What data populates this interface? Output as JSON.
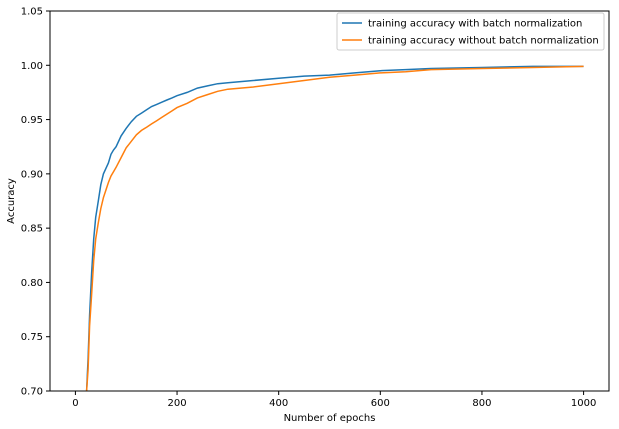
{
  "chart_data": {
    "type": "line",
    "title": "",
    "xlabel": "Number of epochs",
    "ylabel": "Accuracy",
    "xlim": [
      -50,
      1050
    ],
    "ylim": [
      0.7,
      1.05
    ],
    "xticks": [
      0,
      200,
      400,
      600,
      800,
      1000
    ],
    "yticks": [
      0.7,
      0.75,
      0.8,
      0.85,
      0.9,
      0.95,
      1.0,
      1.05
    ],
    "xtick_labels": [
      "0",
      "200",
      "400",
      "600",
      "800",
      "1000"
    ],
    "ytick_labels": [
      "0.70",
      "0.75",
      "0.80",
      "0.85",
      "0.90",
      "0.95",
      "1.00",
      "1.05"
    ],
    "grid": false,
    "legend_position": "top-right",
    "series": [
      {
        "name": "training accuracy with batch normalization",
        "color": "#1f77b4",
        "x": [
          22,
          25,
          28,
          32,
          36,
          40,
          45,
          50,
          55,
          60,
          65,
          70,
          75,
          80,
          90,
          100,
          110,
          120,
          130,
          140,
          150,
          160,
          170,
          180,
          190,
          200,
          220,
          240,
          260,
          280,
          300,
          350,
          400,
          450,
          500,
          550,
          600,
          650,
          700,
          800,
          900,
          1000
        ],
        "y": [
          0.7,
          0.73,
          0.77,
          0.81,
          0.84,
          0.86,
          0.875,
          0.89,
          0.9,
          0.905,
          0.91,
          0.918,
          0.922,
          0.925,
          0.935,
          0.942,
          0.948,
          0.953,
          0.956,
          0.959,
          0.962,
          0.964,
          0.966,
          0.968,
          0.97,
          0.972,
          0.975,
          0.979,
          0.981,
          0.983,
          0.984,
          0.986,
          0.988,
          0.99,
          0.991,
          0.993,
          0.995,
          0.996,
          0.997,
          0.998,
          0.999,
          0.999
        ]
      },
      {
        "name": "training accuracy without batch normalization",
        "color": "#ff7f0e",
        "x": [
          22,
          25,
          28,
          32,
          36,
          40,
          45,
          50,
          55,
          60,
          65,
          70,
          75,
          80,
          90,
          100,
          110,
          120,
          130,
          140,
          150,
          160,
          170,
          180,
          190,
          200,
          220,
          240,
          260,
          280,
          300,
          350,
          400,
          450,
          500,
          550,
          600,
          650,
          700,
          800,
          900,
          1000
        ],
        "y": [
          0.7,
          0.72,
          0.76,
          0.79,
          0.82,
          0.84,
          0.855,
          0.868,
          0.878,
          0.885,
          0.892,
          0.898,
          0.902,
          0.906,
          0.915,
          0.924,
          0.93,
          0.936,
          0.94,
          0.943,
          0.946,
          0.949,
          0.952,
          0.955,
          0.958,
          0.961,
          0.965,
          0.97,
          0.973,
          0.976,
          0.978,
          0.98,
          0.983,
          0.986,
          0.989,
          0.991,
          0.993,
          0.994,
          0.996,
          0.997,
          0.998,
          0.999
        ]
      }
    ]
  }
}
